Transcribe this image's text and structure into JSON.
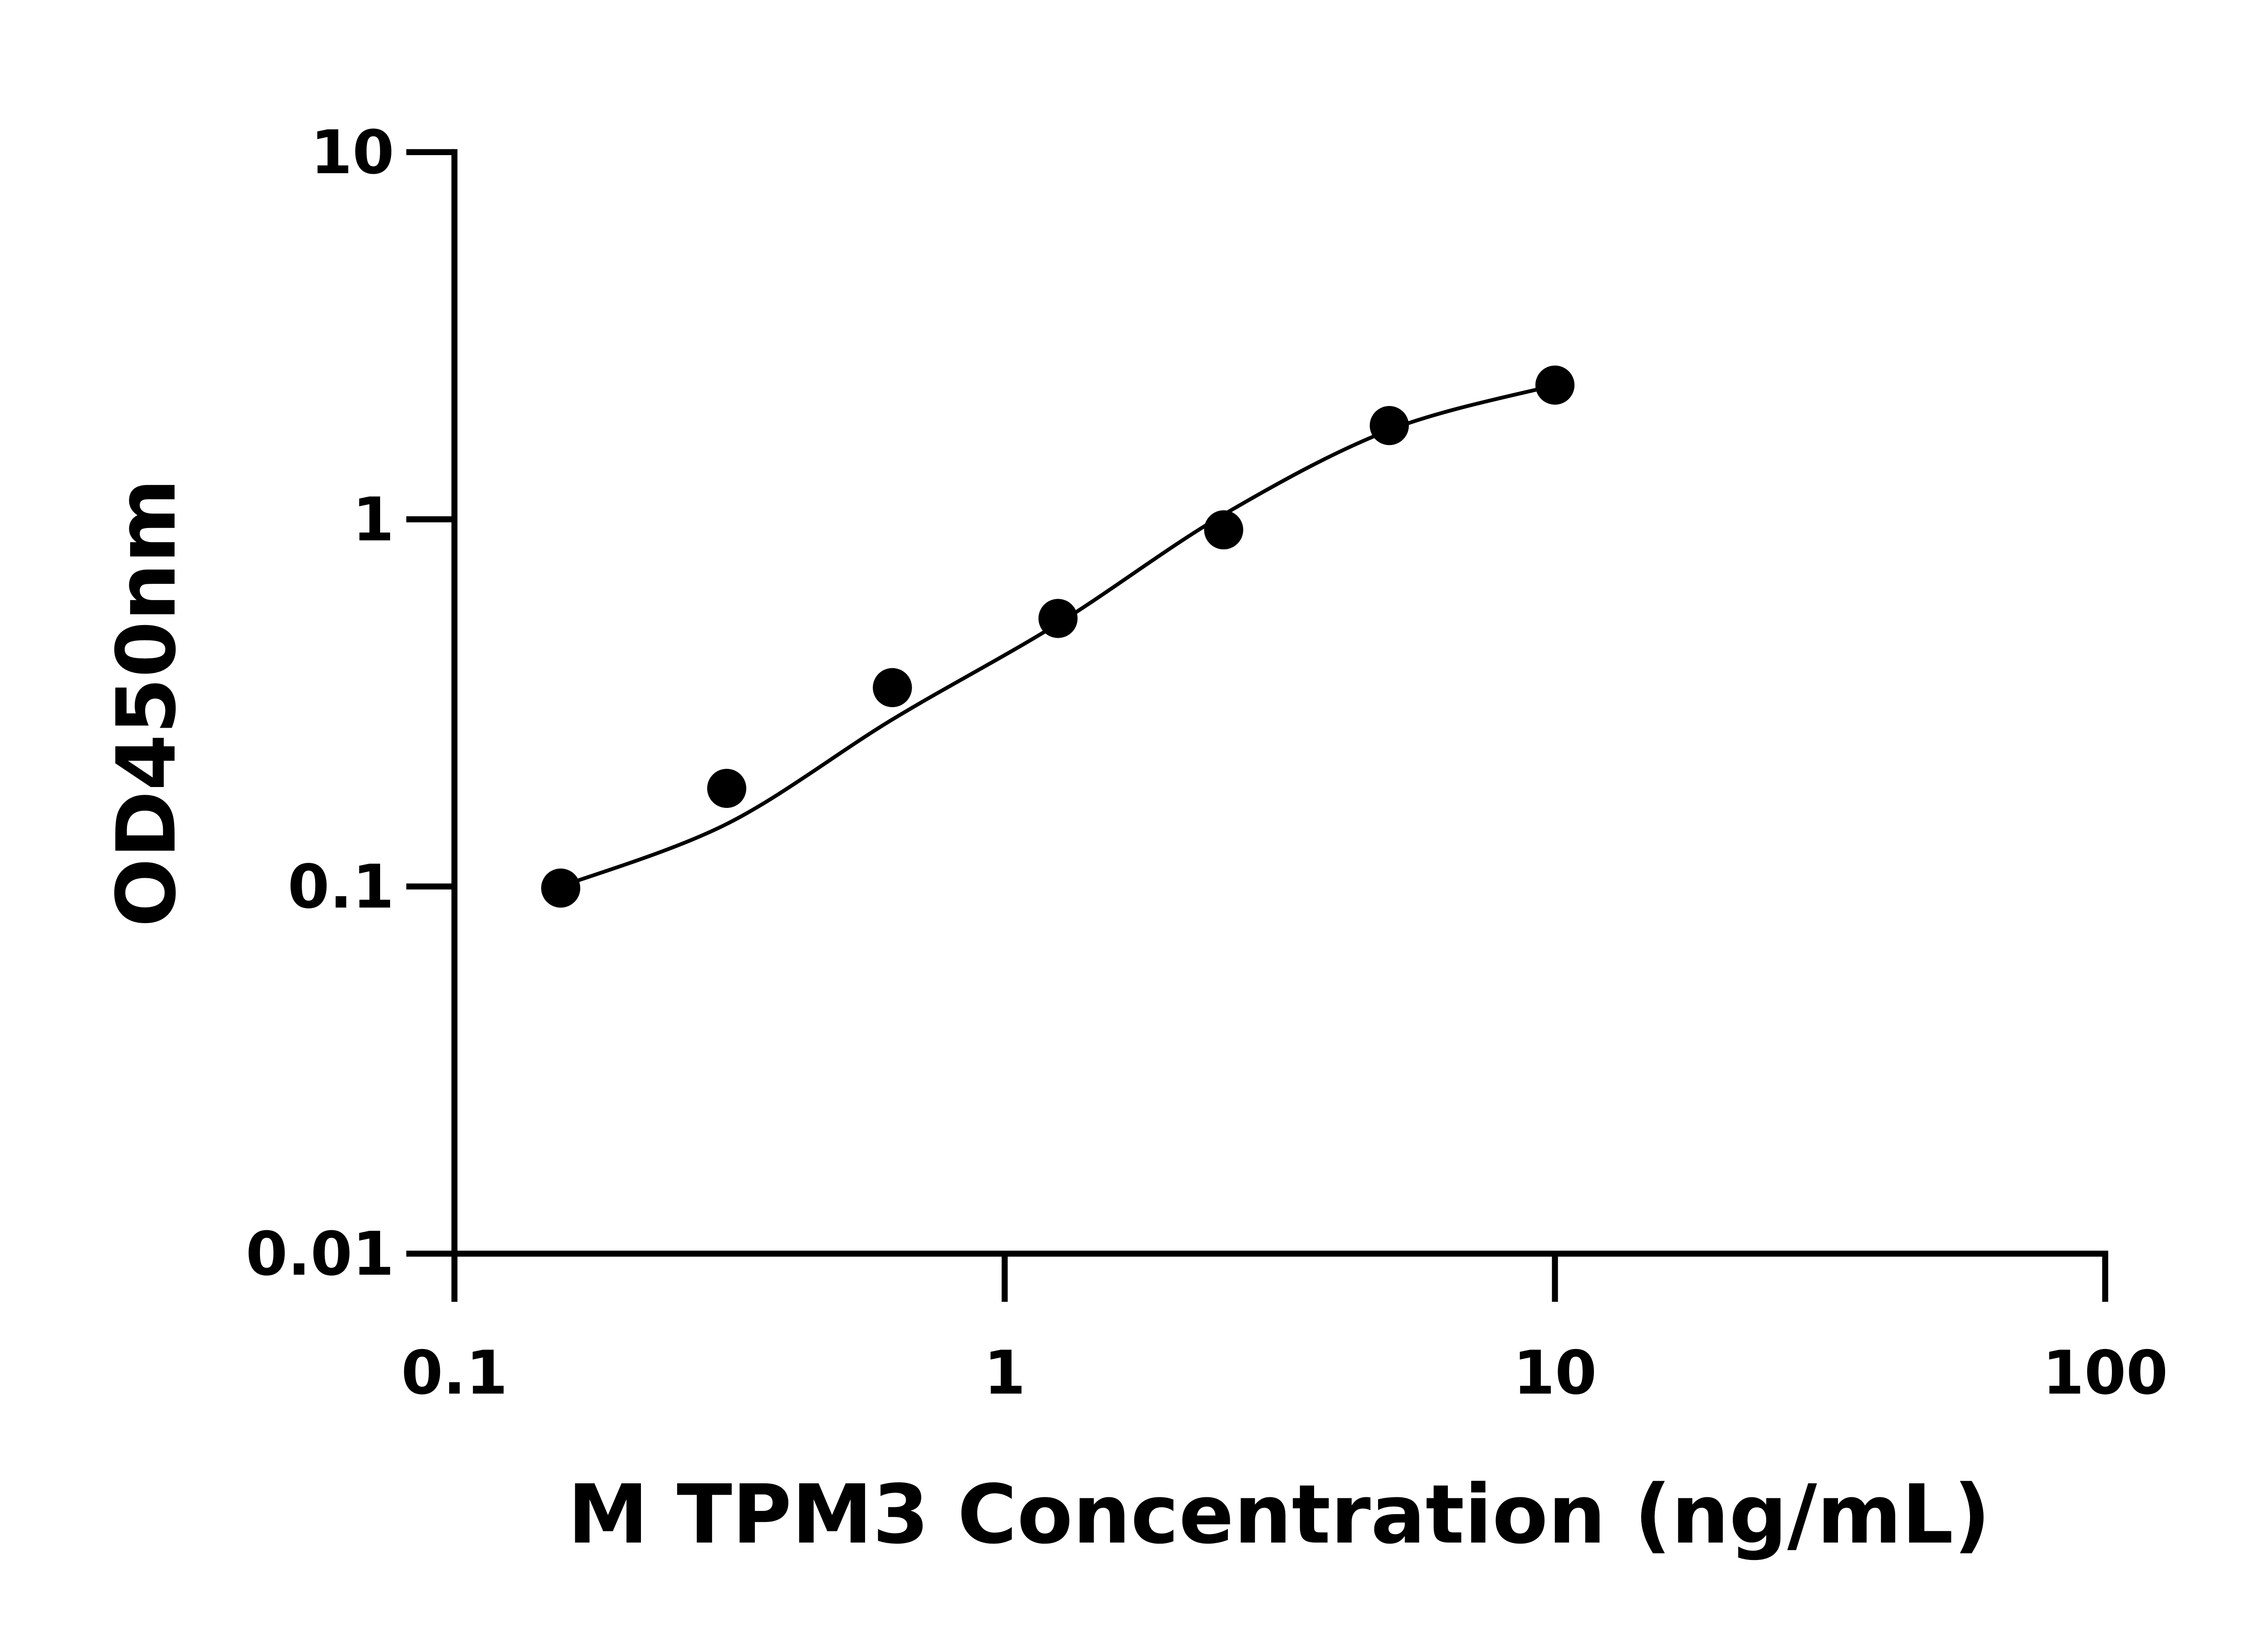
{
  "chart_data": {
    "type": "scatter",
    "title": "",
    "xlabel": "M TPM3 Concentration (ng/mL)",
    "ylabel": "OD450nm",
    "x_scale": "log",
    "y_scale": "log",
    "xlim": [
      0.1,
      100
    ],
    "ylim": [
      0.01,
      10
    ],
    "x_ticks": [
      "0.1",
      "1",
      "10",
      "100"
    ],
    "y_ticks": [
      "0.01",
      "0.1",
      "1",
      "10"
    ],
    "grid": false,
    "legend": "none",
    "marker_color": "#000000",
    "fit_curve": true,
    "series": [
      {
        "x": [
          0.156,
          0.3125,
          0.625,
          1.25,
          2.5,
          5,
          10
        ],
        "y": [
          0.099,
          0.185,
          0.348,
          0.537,
          0.936,
          1.8,
          2.32
        ]
      }
    ]
  }
}
